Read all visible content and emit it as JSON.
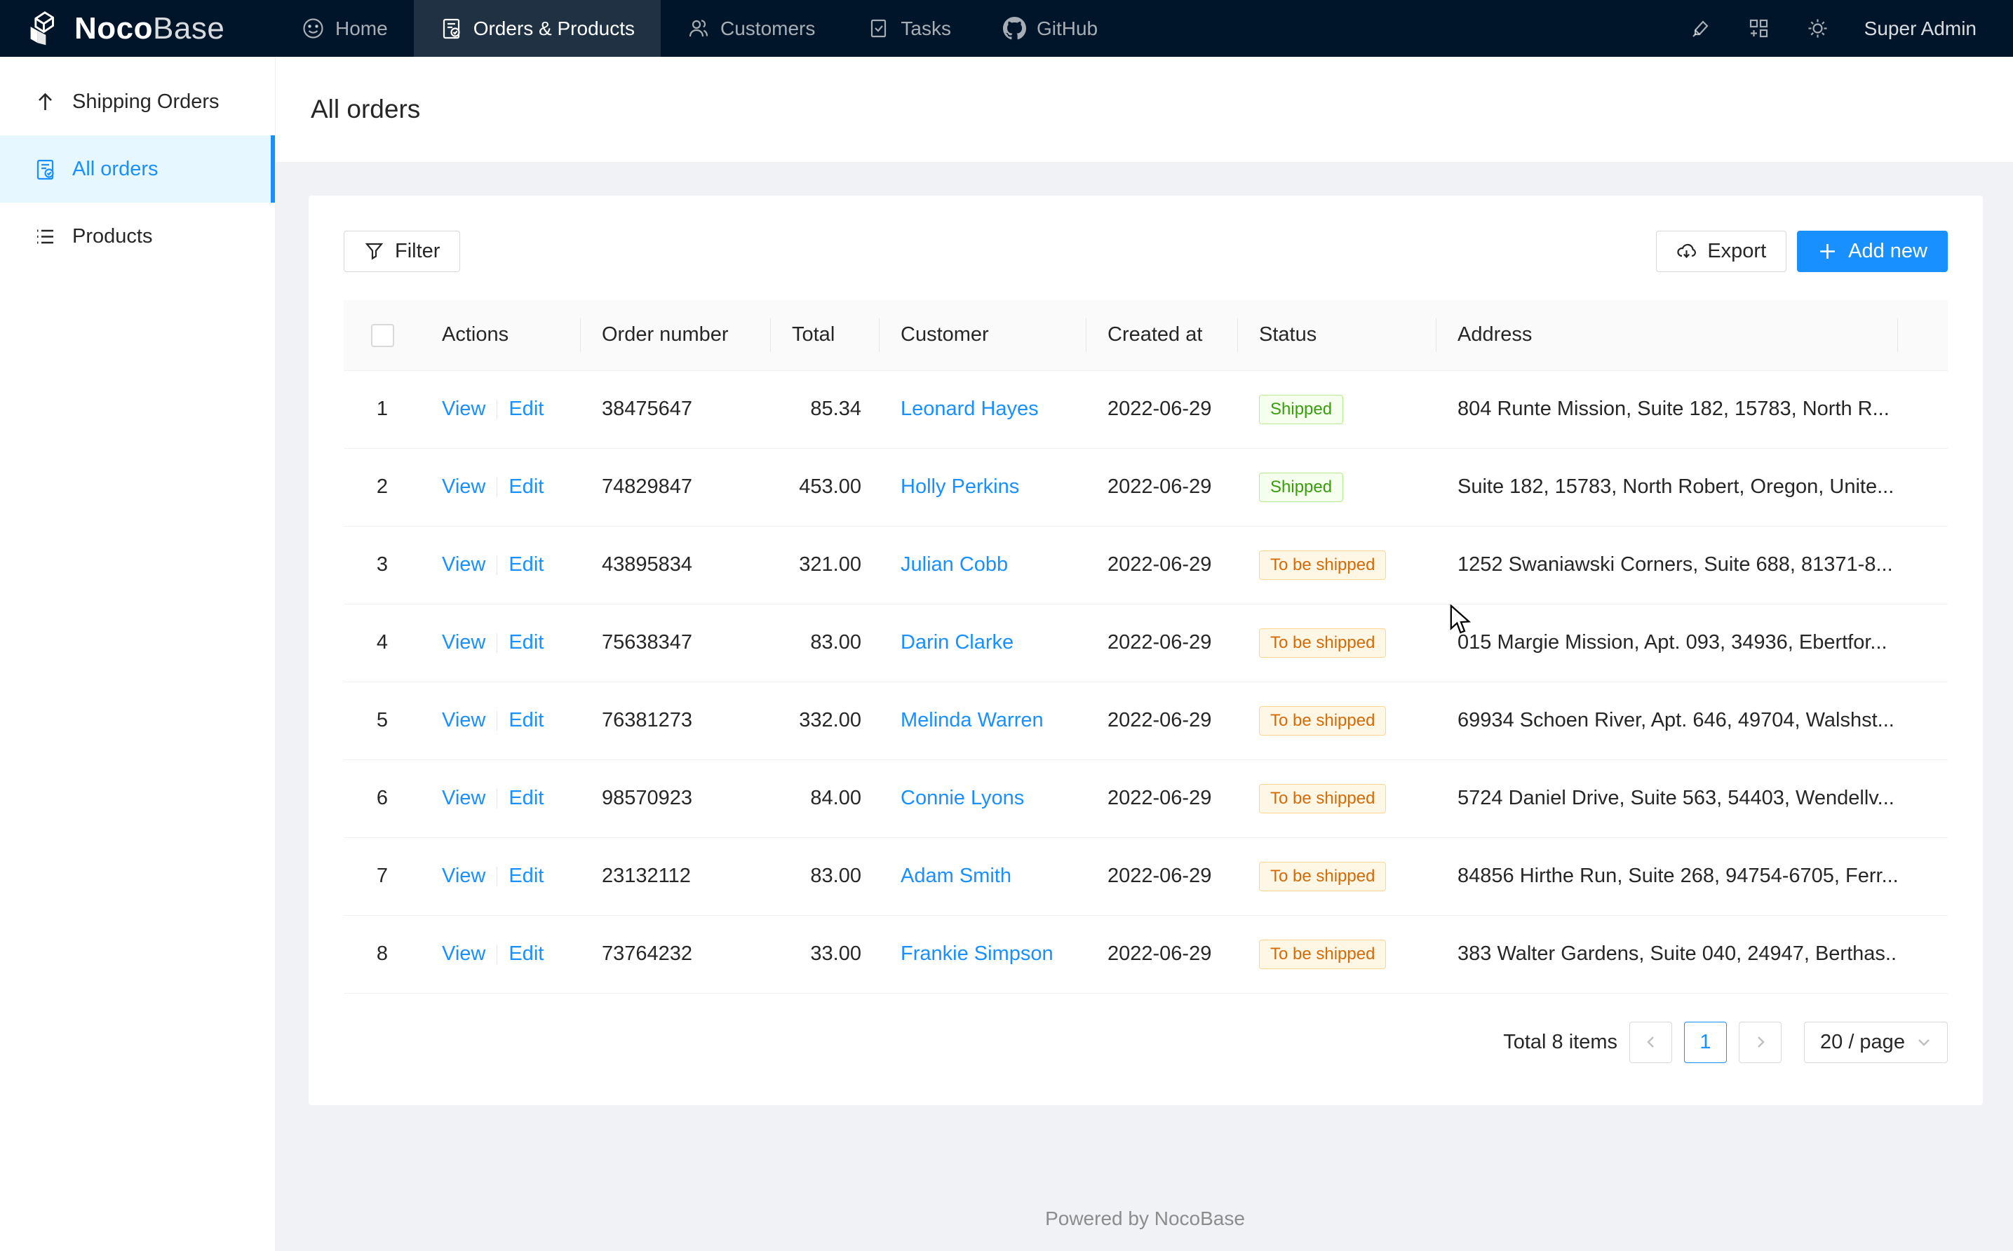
{
  "nav": {
    "logo_bold": "Noco",
    "logo_light": "Base",
    "items": [
      {
        "label": "Home",
        "icon": "smiley-icon",
        "active": false
      },
      {
        "label": "Orders & Products",
        "icon": "order-file-icon",
        "active": true
      },
      {
        "label": "Customers",
        "icon": "customers-icon",
        "active": false
      },
      {
        "label": "Tasks",
        "icon": "task-check-icon",
        "active": false
      },
      {
        "label": "GitHub",
        "icon": "github-icon",
        "active": false
      }
    ],
    "user": "Super Admin"
  },
  "sidebar": {
    "items": [
      {
        "label": "Shipping Orders",
        "icon": "arrow-up-icon",
        "active": false
      },
      {
        "label": "All orders",
        "icon": "order-file-icon",
        "active": true
      },
      {
        "label": "Products",
        "icon": "list-icon",
        "active": false
      }
    ]
  },
  "page": {
    "title": "All orders"
  },
  "toolbar": {
    "filter": "Filter",
    "export": "Export",
    "add_new": "Add new"
  },
  "table": {
    "columns": [
      "Actions",
      "Order number",
      "Total",
      "Customer",
      "Created at",
      "Status",
      "Address"
    ],
    "labels": {
      "view": "View",
      "edit": "Edit"
    },
    "rows": [
      {
        "index": "1",
        "order_number": "38475647",
        "total": "85.34",
        "customer": "Leonard Hayes",
        "created_at": "2022-06-29",
        "status": "Shipped",
        "address": "804 Runte Mission, Suite 182, 15783, North R..."
      },
      {
        "index": "2",
        "order_number": "74829847",
        "total": "453.00",
        "customer": "Holly Perkins",
        "created_at": "2022-06-29",
        "status": "Shipped",
        "address": "Suite 182, 15783, North Robert, Oregon, Unite..."
      },
      {
        "index": "3",
        "order_number": "43895834",
        "total": "321.00",
        "customer": "Julian Cobb",
        "created_at": "2022-06-29",
        "status": "To be shipped",
        "address": "1252 Swaniawski Corners, Suite 688, 81371-8..."
      },
      {
        "index": "4",
        "order_number": "75638347",
        "total": "83.00",
        "customer": "Darin Clarke",
        "created_at": "2022-06-29",
        "status": "To be shipped",
        "address": "015 Margie Mission, Apt. 093, 34936, Ebertfor..."
      },
      {
        "index": "5",
        "order_number": "76381273",
        "total": "332.00",
        "customer": "Melinda Warren",
        "created_at": "2022-06-29",
        "status": "To be shipped",
        "address": "69934 Schoen River, Apt. 646, 49704, Walshst..."
      },
      {
        "index": "6",
        "order_number": "98570923",
        "total": "84.00",
        "customer": "Connie Lyons",
        "created_at": "2022-06-29",
        "status": "To be shipped",
        "address": "5724 Daniel Drive, Suite 563, 54403, Wendellv..."
      },
      {
        "index": "7",
        "order_number": "23132112",
        "total": "83.00",
        "customer": "Adam Smith",
        "created_at": "2022-06-29",
        "status": "To be shipped",
        "address": "84856 Hirthe Run, Suite 268, 94754-6705, Ferr..."
      },
      {
        "index": "8",
        "order_number": "73764232",
        "total": "33.00",
        "customer": "Frankie Simpson",
        "created_at": "2022-06-29",
        "status": "To be shipped",
        "address": "383 Walter Gardens, Suite 040, 24947, Berthas..."
      }
    ]
  },
  "status_styles": {
    "Shipped": {
      "bg": "#f6ffed",
      "border": "#b7eb8f",
      "text": "#389e0d"
    },
    "To be shipped": {
      "bg": "#fff7e6",
      "border": "#ffd591",
      "text": "#d46b08"
    }
  },
  "pagination": {
    "total_text": "Total 8 items",
    "current_page": "1",
    "page_size": "20 / page"
  },
  "footer": {
    "text": "Powered by NocoBase"
  },
  "colors": {
    "accent": "#1890ff",
    "nav_bg": "#001529",
    "active_item_bg": "#e6f7ff",
    "page_bg": "#f0f2f5"
  }
}
